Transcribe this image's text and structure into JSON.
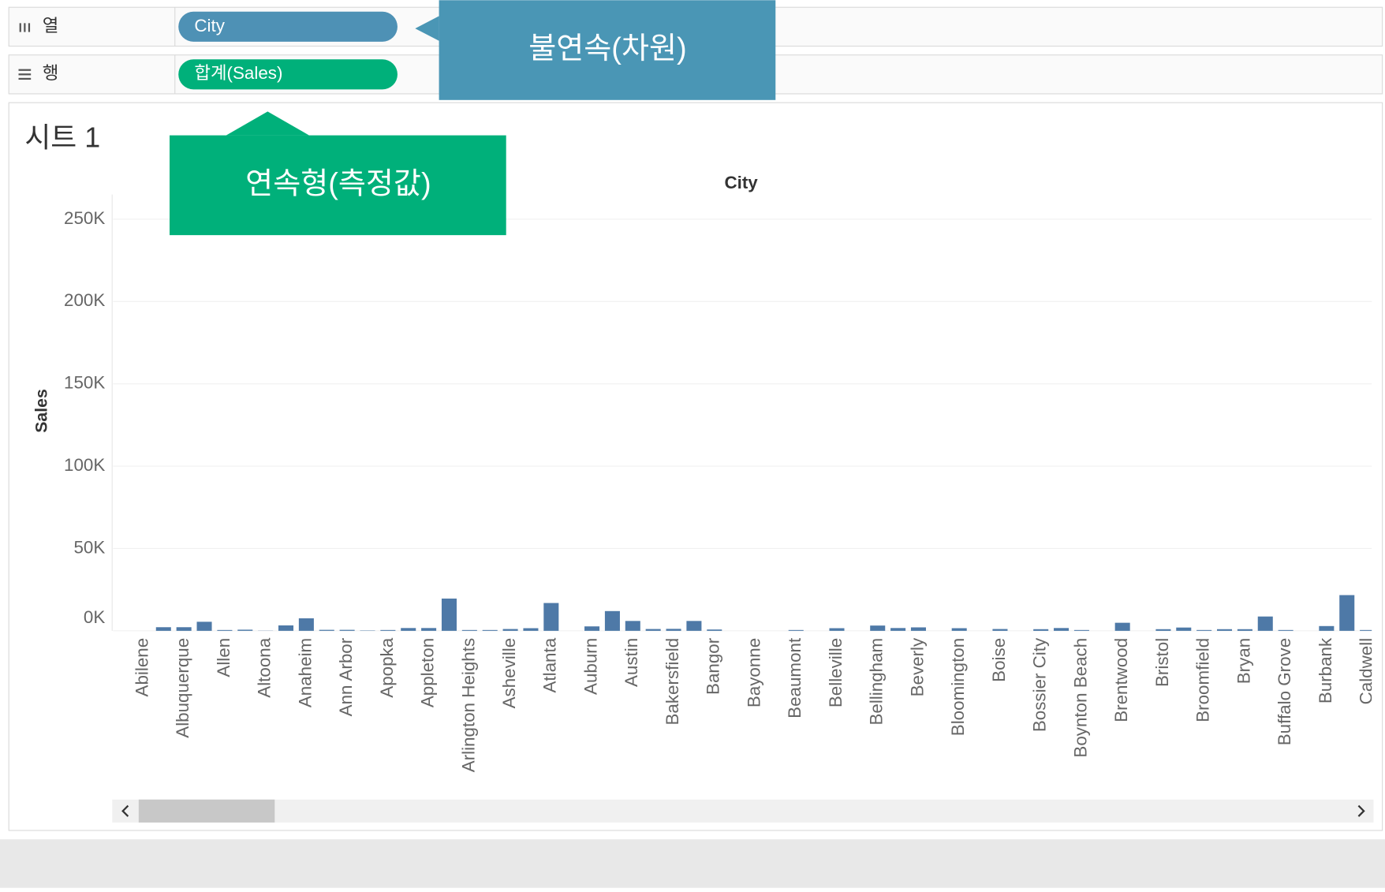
{
  "shelves": {
    "columns": {
      "label": "열",
      "pill": "City"
    },
    "rows": {
      "label": "행",
      "pill": "합계(Sales)"
    }
  },
  "callouts": {
    "discrete": "불연속(차원)",
    "continuous": "연속형(측정값)"
  },
  "sheet_title": "시트 1",
  "chart_data": {
    "type": "bar",
    "title": "City",
    "y_label": "Sales",
    "color": "#4e79a7",
    "grid": true,
    "categories": [
      "Abilene",
      null,
      "Albuquerque",
      null,
      "Allen",
      null,
      "Altoona",
      null,
      "Anaheim",
      null,
      "Ann Arbor",
      null,
      "Apopka",
      null,
      "Appleton",
      null,
      "Arlington Heights",
      null,
      "Asheville",
      null,
      "Atlanta",
      null,
      "Auburn",
      null,
      "Austin",
      null,
      "Bakersfield",
      null,
      "Bangor",
      null,
      "Bayonne",
      null,
      "Beaumont",
      null,
      "Belleville",
      null,
      "Bellingham",
      null,
      "Beverly",
      null,
      "Bloomington",
      null,
      "Boise",
      null,
      "Bossier City",
      null,
      "Boynton Beach",
      null,
      "Brentwood",
      null,
      "Bristol",
      null,
      "Broomfield",
      null,
      "Bryan",
      null,
      "Buffalo Grove",
      null,
      "Burbank",
      null,
      "Caldwell"
    ],
    "values": [
      0,
      2200,
      2200,
      5500,
      500,
      700,
      100,
      3300,
      7600,
      600,
      600,
      200,
      500,
      1700,
      1700,
      19600,
      500,
      500,
      1100,
      1600,
      16900,
      0,
      2700,
      12000,
      6000,
      1100,
      1200,
      6000,
      800,
      0,
      0,
      0,
      500,
      0,
      1600,
      0,
      3200,
      1700,
      2100,
      0,
      1600,
      0,
      1100,
      0,
      1000,
      1700,
      500,
      0,
      4900,
      0,
      1000,
      2000,
      500,
      1000,
      1000,
      8700,
      500,
      0,
      2900,
      21700,
      500
    ],
    "ylim": [
      0,
      265000
    ],
    "yticks": [
      {
        "value": 0,
        "label": "0K"
      },
      {
        "value": 50000,
        "label": "50K"
      },
      {
        "value": 100000,
        "label": "100K"
      },
      {
        "value": 150000,
        "label": "150K"
      },
      {
        "value": 200000,
        "label": "200K"
      },
      {
        "value": 250000,
        "label": "250K"
      }
    ]
  }
}
